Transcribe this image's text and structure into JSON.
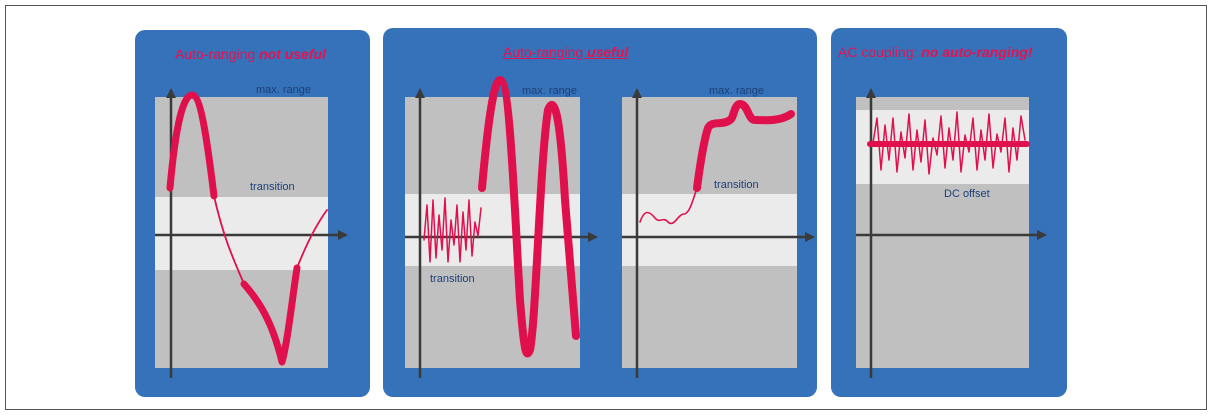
{
  "panels": [
    {
      "title_plain": "Auto-ranging ",
      "title_emph": "not useful",
      "labels": {
        "max_range": "max. range",
        "transition": "transition"
      }
    },
    {
      "title_plain": "Auto-ranging ",
      "title_emph": "useful",
      "labels": {
        "max_range": "max. range",
        "transition_left": "transition",
        "transition_right": "transition"
      }
    },
    {
      "title_plain": "AC coupling: ",
      "title_emph": "no auto-ranging!",
      "labels": {
        "dc_offset": "DC offset"
      }
    }
  ],
  "colors": {
    "panel_bg": "#3572b9",
    "plot_bg": "#c0c0c0",
    "band_bg": "#ebebeb",
    "signal": "#e0104d",
    "axis": "#3a3a3a"
  }
}
